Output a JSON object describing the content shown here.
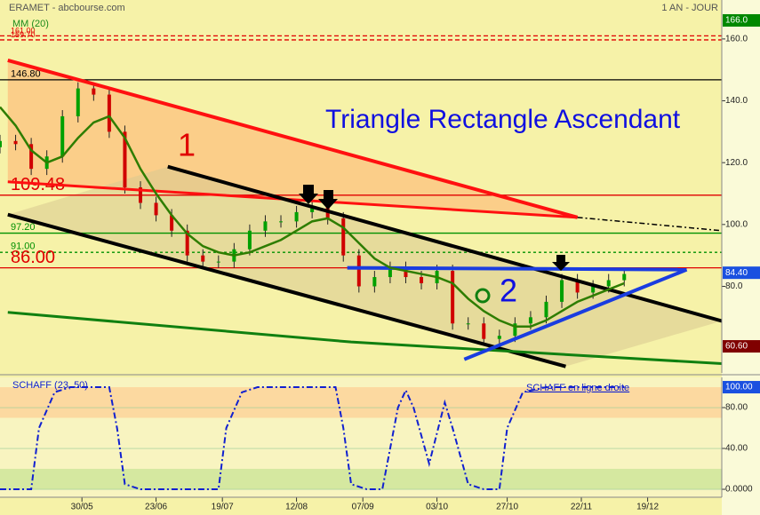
{
  "header": {
    "left": "ERAMET - abcbourse.com",
    "right": "1 AN - JOUR"
  },
  "chart_data": [
    {
      "type": "candlestick",
      "title": "Triangle Rectangle Ascendant",
      "annotations": [
        "1",
        "2"
      ],
      "legend": "MM (20)",
      "x": [
        0,
        4,
        8,
        12,
        16,
        20,
        24,
        28,
        32,
        36,
        40,
        44,
        48,
        52,
        56,
        60,
        64,
        68,
        72,
        76,
        80,
        84,
        88,
        92,
        96,
        100,
        104,
        108,
        112,
        116,
        120,
        124,
        128,
        132,
        136,
        140,
        144,
        148,
        152,
        156,
        160
      ],
      "open": [
        125,
        127,
        126,
        118,
        122,
        135,
        144,
        142,
        130,
        112,
        107,
        103,
        98,
        90,
        88,
        88,
        92,
        98,
        101,
        101,
        104,
        106,
        102,
        90,
        80,
        83,
        86,
        83,
        81,
        85,
        68,
        68,
        63,
        64,
        68,
        70,
        75,
        82,
        78,
        80,
        82
      ],
      "high": [
        129,
        129,
        128,
        124,
        137,
        146,
        146,
        144,
        132,
        114,
        109,
        105,
        100,
        92,
        90,
        94,
        100,
        103,
        103,
        106,
        108,
        108,
        104,
        92,
        85,
        88,
        88,
        85,
        87,
        87,
        70,
        70,
        66,
        70,
        72,
        77,
        84,
        84,
        82,
        84,
        86
      ],
      "low": [
        123,
        124,
        116,
        116,
        120,
        133,
        140,
        128,
        110,
        105,
        101,
        96,
        88,
        86,
        86,
        86,
        90,
        96,
        99,
        99,
        102,
        100,
        88,
        78,
        78,
        81,
        81,
        79,
        79,
        66,
        66,
        61,
        61,
        62,
        66,
        68,
        73,
        76,
        76,
        78,
        80
      ],
      "close": [
        127,
        126,
        118,
        122,
        135,
        144,
        142,
        130,
        112,
        107,
        103,
        98,
        90,
        88,
        88,
        92,
        98,
        101,
        101,
        104,
        106,
        102,
        90,
        80,
        83,
        86,
        83,
        81,
        85,
        68,
        68,
        63,
        64,
        68,
        70,
        75,
        82,
        78,
        80,
        82,
        84
      ],
      "up_color": "#00a000",
      "down_color": "#d00000",
      "series": [
        {
          "name": "MM (20)",
          "color": "#2e7d00",
          "values": [
            138,
            132,
            124,
            120,
            122,
            128,
            133,
            135,
            128,
            118,
            110,
            103,
            97,
            93,
            91,
            90,
            91,
            93,
            95,
            98,
            101,
            102,
            99,
            94,
            89,
            86,
            85,
            84,
            83,
            81,
            76,
            72,
            69,
            67,
            67,
            69,
            72,
            75,
            77,
            79,
            81
          ]
        }
      ],
      "levels": [
        {
          "value": 161,
          "label": "161.00",
          "color": "#e00000",
          "style": "dashed",
          "size": 9
        },
        {
          "value": 159.7,
          "label": "159.70",
          "color": "#e00000",
          "style": "dashed",
          "size": 9
        },
        {
          "value": 146.8,
          "label": "146.80",
          "color": "#000000",
          "style": "solid",
          "size": 11
        },
        {
          "value": 109.48,
          "label": "109.48",
          "color": "#e00000",
          "style": "solid",
          "size": 20
        },
        {
          "value": 97.2,
          "label": "97.20",
          "color": "#009000",
          "style": "solid",
          "size": 11
        },
        {
          "value": 91,
          "label": "91.00",
          "color": "#009000",
          "style": "dotted",
          "size": 11
        },
        {
          "value": 86,
          "label": "86.00",
          "color": "#e00000",
          "style": "solid",
          "size": 20
        }
      ],
      "trendlines": [
        {
          "x": [
            2,
            148
          ],
          "y": [
            153.1,
            102.3
          ],
          "color": "#ff1010",
          "width": 4
        },
        {
          "x": [
            148,
            185
          ],
          "y": [
            102.3,
            98
          ],
          "color": "#000000",
          "width": 1.5,
          "dash": "6 3 2 3"
        },
        {
          "x": [
            2,
            148
          ],
          "y": [
            113.8,
            102.3
          ],
          "color": "#ff1010",
          "width": 3
        },
        {
          "x": [
            43,
            185
          ],
          "y": [
            118.7,
            68.8
          ],
          "color": "#000000",
          "width": 4
        },
        {
          "x": [
            2,
            145
          ],
          "y": [
            103.2,
            54.1
          ],
          "color": "#000000",
          "width": 4
        },
        {
          "x": [
            2,
            90,
            185
          ],
          "y": [
            71.6,
            62,
            55
          ],
          "color": "#108010",
          "width": 3
        },
        {
          "x": [
            89,
            176
          ],
          "y": [
            86,
            85.4
          ],
          "color": "#1a3de0",
          "width": 4
        },
        {
          "x": [
            119,
            176
          ],
          "y": [
            56.4,
            85.4
          ],
          "color": "#1a3de0",
          "width": 4
        }
      ],
      "markers": [
        {
          "value": 166,
          "label": "166.0",
          "color": "#008800"
        },
        {
          "value": 84.4,
          "label": "84.40",
          "color": "#1a50e0"
        },
        {
          "value": 60.6,
          "label": "60.60",
          "color": "#800000"
        }
      ],
      "xlim": [
        0,
        185
      ],
      "ylim": [
        52,
        172.6
      ],
      "yticks": [
        {
          "value": 160,
          "label": "160.0"
        },
        {
          "value": 140,
          "label": "140.0"
        },
        {
          "value": 120,
          "label": "120.0"
        },
        {
          "value": 100,
          "label": "100.0"
        },
        {
          "value": 80,
          "label": "80.0"
        }
      ],
      "xticks": [
        {
          "value": 21,
          "label": "30/05"
        },
        {
          "value": 40,
          "label": "23/06"
        },
        {
          "value": 57,
          "label": "19/07"
        },
        {
          "value": 76,
          "label": "12/08"
        },
        {
          "value": 93,
          "label": "07/09"
        },
        {
          "value": 112,
          "label": "03/10"
        },
        {
          "value": 130,
          "label": "27/10"
        },
        {
          "value": 149,
          "label": "22/11"
        },
        {
          "value": 166,
          "label": "19/12"
        }
      ]
    },
    {
      "type": "line",
      "title": "SCHAFF (23, 50)",
      "annotations": [
        "SCHAFF en ligne droite"
      ],
      "x": [
        0,
        8,
        10,
        14,
        18,
        28,
        30,
        32,
        36,
        56,
        58,
        62,
        66,
        86,
        88,
        90,
        94,
        98,
        102,
        104,
        106,
        110,
        114,
        116,
        120,
        124,
        128,
        130,
        134,
        140,
        160
      ],
      "series": [
        {
          "name": "SCHAFF (23, 50)",
          "color": "#1020d0",
          "values": [
            0,
            0,
            60,
            95,
            100,
            100,
            60,
            5,
            0,
            0,
            60,
            95,
            100,
            100,
            60,
            5,
            0,
            0,
            80,
            97,
            80,
            25,
            85,
            60,
            5,
            0,
            0,
            60,
            95,
            100,
            100
          ]
        }
      ],
      "zones": [
        {
          "from": 70,
          "to": 100,
          "color": "#fcd9a0"
        },
        {
          "from": 0,
          "to": 20,
          "color": "#d5e8a0"
        }
      ],
      "markers": [
        {
          "value": 100,
          "label": "100.00",
          "color": "#1a50e0"
        }
      ],
      "xlim": [
        0,
        185
      ],
      "ylim": [
        -7.8,
        109.6
      ],
      "yticks": [
        {
          "value": 80,
          "label": "80.00"
        },
        {
          "value": 40,
          "label": "40.00"
        },
        {
          "value": 0,
          "label": "0.0000"
        }
      ]
    }
  ]
}
